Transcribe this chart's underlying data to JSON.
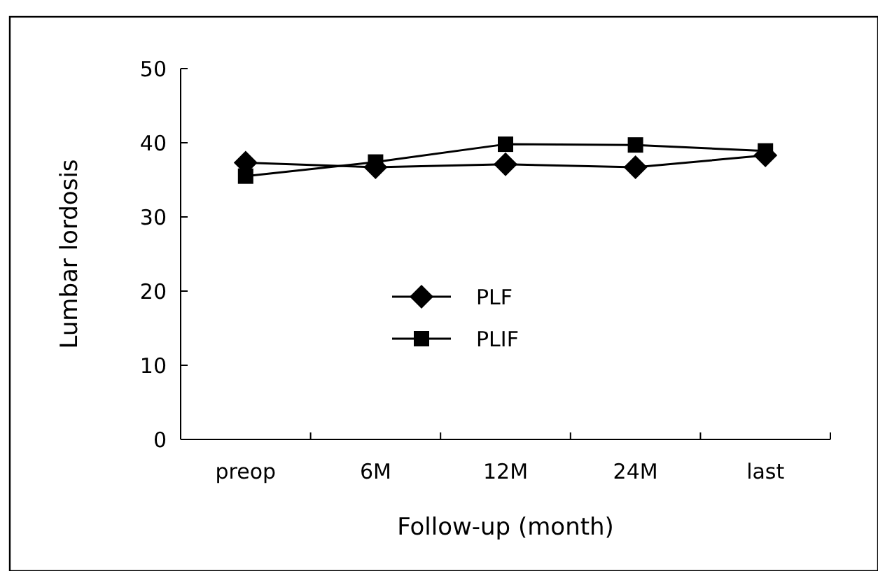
{
  "chart_data": {
    "type": "line",
    "xlabel": "Follow-up (month)",
    "ylabel": "Lumbar lordosis",
    "categories": [
      "preop",
      "6M",
      "12M",
      "24M",
      "last"
    ],
    "series": [
      {
        "name": "PLF",
        "color": "#000000",
        "marker": "diamond",
        "values": [
          37.3,
          36.7,
          37.1,
          36.7,
          38.3
        ]
      },
      {
        "name": "PLIF",
        "color": "#000000",
        "marker": "square",
        "values": [
          35.5,
          37.4,
          39.8,
          39.7,
          38.9
        ]
      }
    ],
    "ylim": [
      0,
      50
    ],
    "yticks": [
      0,
      10,
      20,
      30,
      40,
      50
    ],
    "grid": false,
    "legend": "center",
    "line_style": "solid"
  }
}
